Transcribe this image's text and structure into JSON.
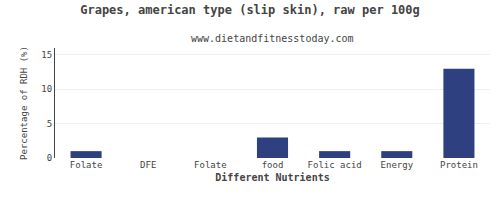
{
  "chart_data": {
    "type": "bar",
    "title": "Grapes, american type (slip skin), raw per 100g",
    "subtitle": "www.dietandfitnesstoday.com",
    "xlabel": "Different Nutrients",
    "ylabel": "Percentage of RDH (%)",
    "categories": [
      "Folate",
      "DFE",
      "Folate",
      "food",
      "Folic acid",
      "Energy",
      "Protein"
    ],
    "values": [
      1.0,
      0.0,
      0.0,
      3.0,
      1.0,
      1.0,
      13.0
    ],
    "color": "#2e4080",
    "ylim": [
      0,
      16
    ],
    "yticks": [
      0,
      5,
      10,
      15
    ],
    "grid": true
  }
}
